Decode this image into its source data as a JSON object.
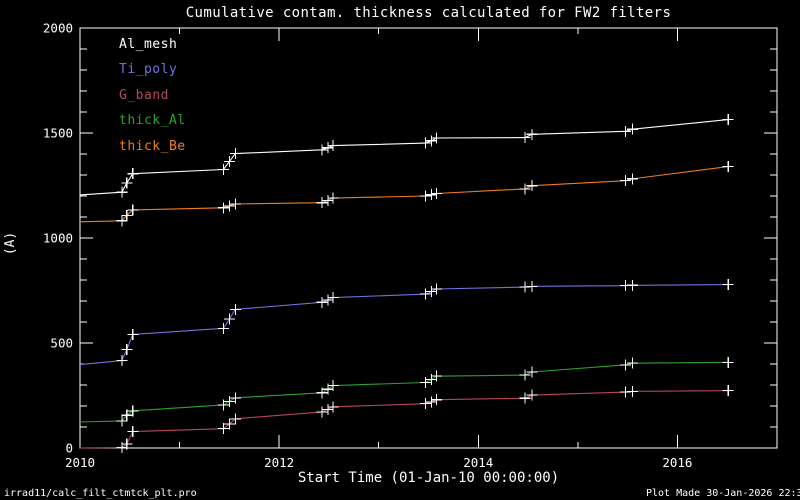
{
  "footer": {
    "left": "irrad11/calc_filt_ctmtck_plt.pro",
    "right": "Plot Made 30-Jan-2026 22:3"
  },
  "legend": {
    "items": [
      {
        "label": "Al_mesh",
        "color": "#ffffff"
      },
      {
        "label": "Ti_poly",
        "color": "#7272e0"
      },
      {
        "label": "G_band",
        "color": "#b5485a"
      },
      {
        "label": "thick_Al",
        "color": "#2da12d"
      },
      {
        "label": "thick_Be",
        "color": "#ef7d1d"
      }
    ]
  },
  "chart_data": {
    "type": "line",
    "title": "Cumulative contam. thickness calculated for FW2 filters",
    "xlabel": "Start Time (01-Jan-10 00:00:00)",
    "ylabel": "(A)",
    "x_range": [
      2010,
      2017
    ],
    "y_range": [
      0,
      2000
    ],
    "x_major_ticks": [
      2010,
      2012,
      2014,
      2016
    ],
    "x_minor_step": 1,
    "y_major_step": 500,
    "y_minor_step": 100,
    "axis_color": "#ffffff",
    "marker": "plus",
    "marker_color": "#ffffff",
    "legend_position": "upper-left-inside",
    "grid": false,
    "series": [
      {
        "name": "Al_mesh",
        "color": "#ffffff",
        "points": [
          [
            2010.0,
            1205
          ],
          [
            2010.42,
            1218
          ],
          [
            2010.47,
            1262
          ],
          [
            2010.53,
            1306
          ],
          [
            2011.44,
            1326
          ],
          [
            2011.5,
            1364
          ],
          [
            2011.56,
            1402
          ],
          [
            2012.43,
            1420
          ],
          [
            2012.49,
            1430
          ],
          [
            2012.54,
            1440
          ],
          [
            2013.47,
            1452
          ],
          [
            2013.53,
            1463
          ],
          [
            2013.58,
            1476
          ],
          [
            2014.47,
            1478
          ],
          [
            2014.54,
            1494
          ],
          [
            2015.48,
            1508
          ],
          [
            2015.55,
            1518
          ],
          [
            2016.51,
            1564
          ]
        ]
      },
      {
        "name": "Ti_poly",
        "color": "#7272e0",
        "points": [
          [
            2010.0,
            397
          ],
          [
            2010.42,
            416
          ],
          [
            2010.47,
            469
          ],
          [
            2010.53,
            541
          ],
          [
            2011.44,
            570
          ],
          [
            2011.5,
            614
          ],
          [
            2011.56,
            660
          ],
          [
            2012.43,
            694
          ],
          [
            2012.49,
            705
          ],
          [
            2012.54,
            716
          ],
          [
            2013.47,
            733
          ],
          [
            2013.53,
            745
          ],
          [
            2013.58,
            757
          ],
          [
            2014.47,
            766
          ],
          [
            2014.54,
            770
          ],
          [
            2015.48,
            773
          ],
          [
            2015.55,
            775
          ],
          [
            2016.51,
            778
          ]
        ]
      },
      {
        "name": "G_band",
        "color": "#b5485a",
        "points": [
          [
            2010.0,
            0
          ],
          [
            2010.42,
            2
          ],
          [
            2010.47,
            19
          ],
          [
            2010.53,
            78
          ],
          [
            2011.44,
            92
          ],
          [
            2011.5,
            115
          ],
          [
            2011.56,
            139
          ],
          [
            2012.43,
            172
          ],
          [
            2012.49,
            184
          ],
          [
            2012.54,
            196
          ],
          [
            2013.47,
            211
          ],
          [
            2013.53,
            220
          ],
          [
            2013.58,
            230
          ],
          [
            2014.47,
            237
          ],
          [
            2014.54,
            252
          ],
          [
            2015.48,
            266
          ],
          [
            2015.55,
            270
          ],
          [
            2016.51,
            273
          ]
        ]
      },
      {
        "name": "thick_Al",
        "color": "#2da12d",
        "points": [
          [
            2010.0,
            124
          ],
          [
            2010.42,
            129
          ],
          [
            2010.47,
            156
          ],
          [
            2010.53,
            177
          ],
          [
            2011.44,
            205
          ],
          [
            2011.5,
            222
          ],
          [
            2011.56,
            239
          ],
          [
            2012.43,
            263
          ],
          [
            2012.49,
            280
          ],
          [
            2012.54,
            297
          ],
          [
            2013.47,
            312
          ],
          [
            2013.53,
            327
          ],
          [
            2013.58,
            342
          ],
          [
            2014.47,
            347
          ],
          [
            2014.54,
            362
          ],
          [
            2015.48,
            396
          ],
          [
            2015.55,
            404
          ],
          [
            2016.51,
            408
          ]
        ]
      },
      {
        "name": "thick_Be",
        "color": "#ef7d1d",
        "points": [
          [
            2010.0,
            1077
          ],
          [
            2010.42,
            1082
          ],
          [
            2010.47,
            1108
          ],
          [
            2010.53,
            1134
          ],
          [
            2011.44,
            1144
          ],
          [
            2011.5,
            1153
          ],
          [
            2011.56,
            1162
          ],
          [
            2012.43,
            1168
          ],
          [
            2012.49,
            1179
          ],
          [
            2012.54,
            1190
          ],
          [
            2013.47,
            1200
          ],
          [
            2013.53,
            1206
          ],
          [
            2013.58,
            1212
          ],
          [
            2014.47,
            1234
          ],
          [
            2014.54,
            1249
          ],
          [
            2015.48,
            1273
          ],
          [
            2015.55,
            1282
          ],
          [
            2016.51,
            1340
          ]
        ]
      }
    ]
  }
}
